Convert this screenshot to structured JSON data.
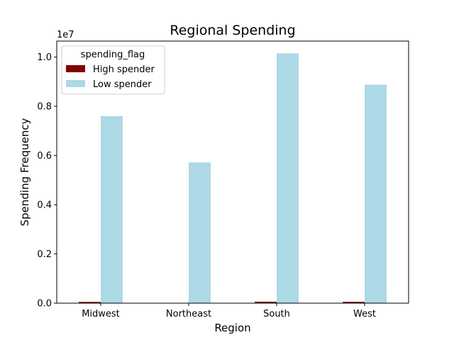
{
  "colors": {
    "high": "#800000",
    "low": "#add8e6"
  },
  "chart_data": {
    "type": "bar",
    "title": "Regional Spending",
    "xlabel": "Region",
    "ylabel": "Spending Frequency",
    "y_offset_label": "1e7",
    "categories": [
      "Midwest",
      "Northeast",
      "South",
      "West"
    ],
    "series": [
      {
        "name": "High spender",
        "values": [
          50000,
          8000,
          60000,
          55000
        ]
      },
      {
        "name": "Low spender",
        "values": [
          7600000,
          5720000,
          10150000,
          8880000
        ]
      }
    ],
    "ylim": [
      0,
      10650000
    ],
    "yticks": [
      0,
      2000000,
      4000000,
      6000000,
      8000000,
      10000000
    ],
    "ytick_labels": [
      "0.0",
      "0.2",
      "0.4",
      "0.6",
      "0.8",
      "1.0"
    ],
    "legend": {
      "title": "spending_flag",
      "placement": "top-left"
    },
    "grid": false
  }
}
